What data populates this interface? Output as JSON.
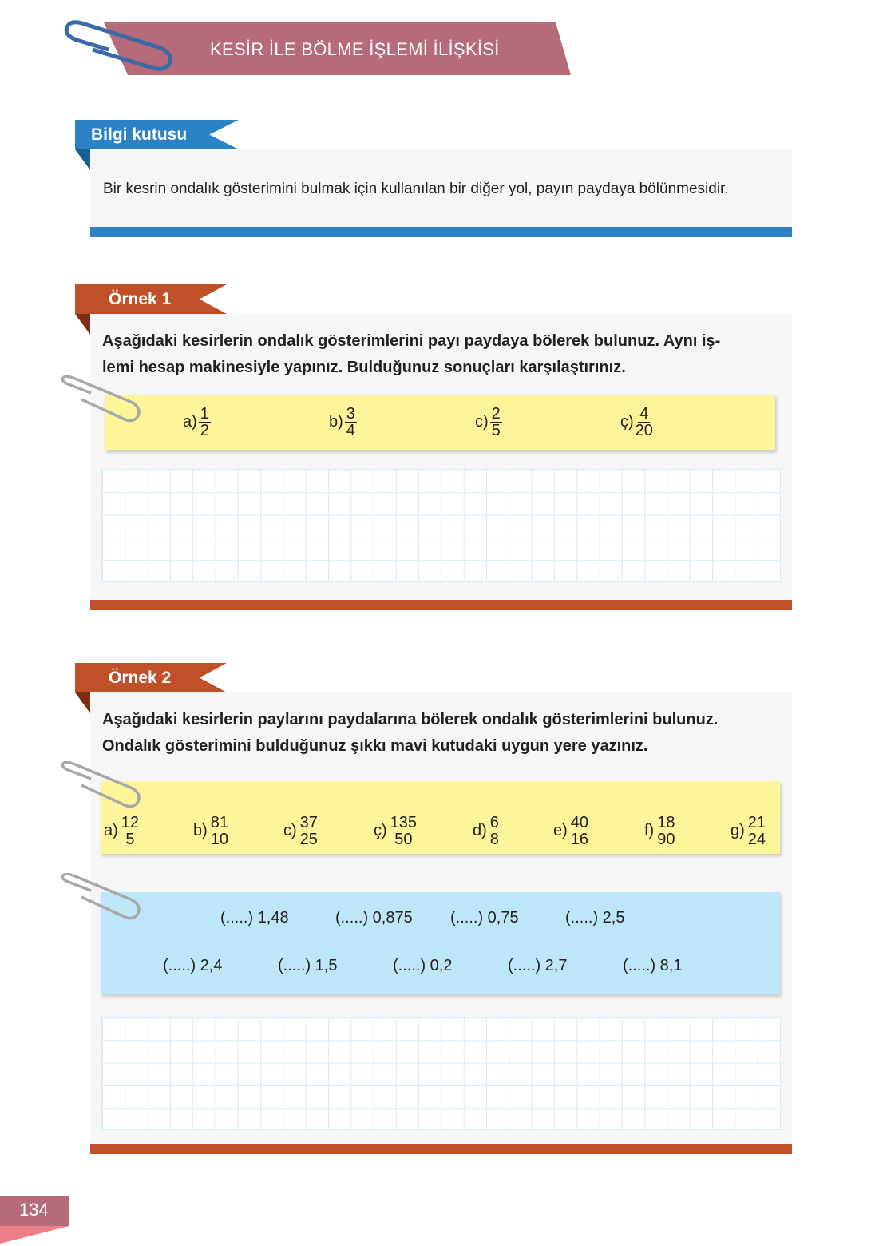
{
  "header": {
    "title": "KESİR İLE BÖLME İŞLEMİ İLİŞKİSİ"
  },
  "info_box": {
    "label": "Bilgi kutusu",
    "text": "Bir kesrin ondalık gösterimini bulmak için kullanılan bir diğer yol, payın paydaya bölünmesidir.",
    "color": "#2b82c4"
  },
  "example1": {
    "label": "Örnek 1",
    "line1": "Aşağıdaki kesirlerin ondalık gösterimlerini payı paydaya bölerek bulunuz. Aynı iş-",
    "line2": "lemi hesap makinesiyle yapınız. Bulduğunuz sonuçları karşılaştırınız.",
    "color": "#c0502a",
    "fractions": [
      {
        "label": "a)",
        "num": "1",
        "den": "2"
      },
      {
        "label": "b)",
        "num": "3",
        "den": "4"
      },
      {
        "label": "c)",
        "num": "2",
        "den": "5"
      },
      {
        "label": "ç)",
        "num": "4",
        "den": "20"
      }
    ]
  },
  "example2": {
    "label": "Örnek 2",
    "line1": "Aşağıdaki kesirlerin paylarını paydalarına bölerek ondalık gösterimlerini bulunuz.",
    "line2": "Ondalık gösterimini bulduğunuz şıkkı mavi kutudaki uygun yere yazınız.",
    "fractions": [
      {
        "label": "a)",
        "num": "12",
        "den": "5"
      },
      {
        "label": "b)",
        "num": "81",
        "den": "10"
      },
      {
        "label": "c)",
        "num": "37",
        "den": "25"
      },
      {
        "label": "ç)",
        "num": "135",
        "den": "50"
      },
      {
        "label": "d)",
        "num": "6",
        "den": "8"
      },
      {
        "label": "e)",
        "num": "40",
        "den": "16"
      },
      {
        "label": "f)",
        "num": "18",
        "den": "90"
      },
      {
        "label": "g)",
        "num": "21",
        "den": "24"
      }
    ],
    "answers_row1": [
      "(.....) 1,48",
      "(.....) 0,875",
      "(.....) 0,75",
      "(.....) 2,5"
    ],
    "answers_row2": [
      "(.....) 2,4",
      "(.....) 1,5",
      "(.....) 0,2",
      "(.....) 2,7",
      "(.....) 8,1"
    ]
  },
  "page_number": "134"
}
